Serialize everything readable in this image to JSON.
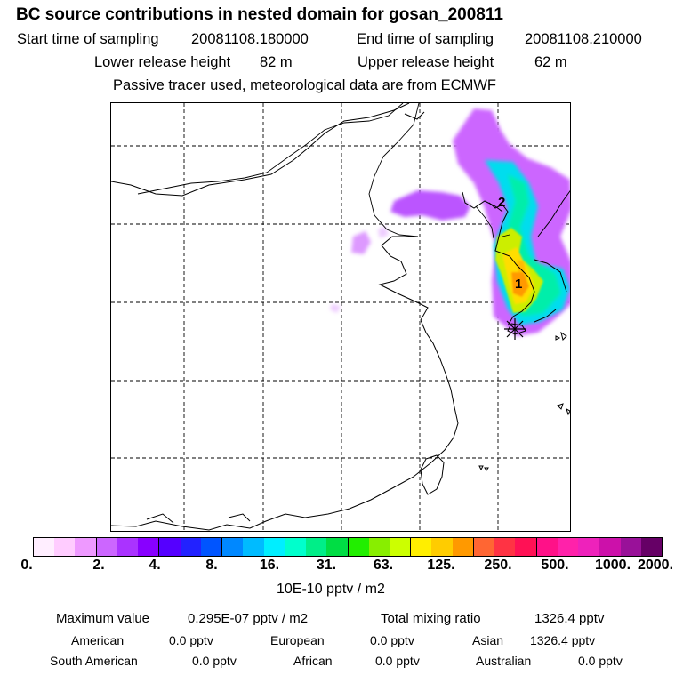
{
  "title": "BC  source contributions in nested domain for gosan_200811",
  "sampling": {
    "start_label": "Start time of sampling",
    "start_value": "20081108.180000",
    "end_label": "End time of sampling",
    "end_value": "20081108.210000"
  },
  "release": {
    "lower_label": "Lower release height",
    "lower_value": "82 m",
    "upper_label": "Upper release height",
    "upper_value": "62 m"
  },
  "note": "Passive tracer used, meteorological data are from ECMWF",
  "map": {
    "receptor_labels": [
      "1",
      "2"
    ],
    "receptor_marker": "asterisk-marker",
    "grid": "dashed"
  },
  "colorbar": {
    "colors": [
      "#ffeeff",
      "#ffccff",
      "#ee99ff",
      "#cc66ff",
      "#aa33ff",
      "#8800ff",
      "#5500ff",
      "#2222ff",
      "#0055ff",
      "#0088ff",
      "#00bbff",
      "#00eeff",
      "#00ffcc",
      "#00ee88",
      "#00dd44",
      "#22ee00",
      "#88ee00",
      "#ccff00",
      "#ffee00",
      "#ffcc00",
      "#ff9900",
      "#ff6633",
      "#ff3344",
      "#ff1155",
      "#ff1188",
      "#ff22aa",
      "#ee22bb",
      "#cc11aa",
      "#991199",
      "#660066"
    ],
    "ticks": [
      "0.",
      "2.",
      "4.",
      "8.",
      "16.",
      "31.",
      "63.",
      "125.",
      "250.",
      "500.",
      "1000.",
      "2000."
    ],
    "units": "10E-10 pptv / m2"
  },
  "summary": {
    "max_label": "Maximum value",
    "max_value": "0.295E-07 pptv / m2",
    "total_label": "Total mixing ratio",
    "total_value": "1326.4 pptv",
    "american_label": "American",
    "american_value": "0.0 pptv",
    "european_label": "European",
    "european_value": "0.0 pptv",
    "asian_label": "Asian",
    "asian_value": "1326.4 pptv",
    "south_american_label": "South American",
    "south_american_value": "0.0 pptv",
    "african_label": "African",
    "african_value": "0.0 pptv",
    "australian_label": "Australian",
    "australian_value": "0.0 pptv"
  }
}
